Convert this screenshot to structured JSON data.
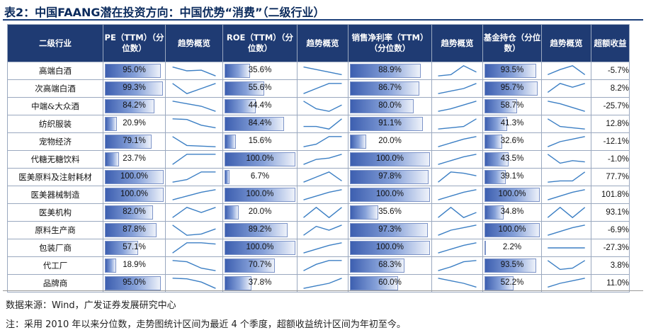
{
  "title": "表2：中国FAANG潜在投资方向：中国优势“消费”（二级行业）",
  "headers": {
    "industry": "二级行业",
    "pe": "PE（TTM）（分位数）",
    "trend1": "趋势概览",
    "roe": "ROE（TTM）（分位数）",
    "trend2": "趋势概览",
    "margin": "销售净利率（TTM）（分位数）",
    "trend3": "趋势概览",
    "fund": "基金持仓（分位数）",
    "trend4": "趋势概览",
    "excess": "超额收益"
  },
  "rows": [
    {
      "industry": "高端白酒",
      "pe": "95.0%",
      "pe_v": 0.95,
      "roe": "35.6%",
      "roe_v": 0.356,
      "margin": "88.9%",
      "margin_v": 0.889,
      "fund": "93.5%",
      "fund_v": 0.935,
      "excess": "-5.7%",
      "t1": [
        0.8,
        0.5,
        0.55,
        0.1
      ],
      "t2": [
        0.8,
        0.6,
        0.4,
        0.2
      ],
      "t3": [
        0.1,
        0.2,
        0.9,
        0.4
      ],
      "t4": [
        0.2,
        0.6,
        0.9,
        0.2
      ]
    },
    {
      "industry": "次高端白酒",
      "pe": "99.3%",
      "pe_v": 0.993,
      "roe": "55.6%",
      "roe_v": 0.556,
      "margin": "86.7%",
      "margin_v": 0.867,
      "fund": "95.7%",
      "fund_v": 0.957,
      "excess": "8.2%",
      "t1": [
        0.9,
        0.1,
        0.5,
        0.9
      ],
      "t2": [
        0.1,
        0.5,
        0.9,
        0.9
      ],
      "t3": [
        0.1,
        0.3,
        0.5,
        0.9
      ],
      "t4": [
        0.2,
        0.9,
        0.6,
        0.9
      ]
    },
    {
      "industry": "中端&大众酒",
      "pe": "84.2%",
      "pe_v": 0.842,
      "roe": "44.4%",
      "roe_v": 0.444,
      "margin": "80.0%",
      "margin_v": 0.8,
      "fund": "58.7%",
      "fund_v": 0.587,
      "excess": "-25.7%",
      "t1": [
        0.9,
        0.7,
        0.5,
        0.1
      ],
      "t2": [
        0.9,
        0.3,
        0.1,
        0.6
      ],
      "t3": [
        0.1,
        0.3,
        0.6,
        0.9
      ],
      "t4": [
        0.9,
        0.7,
        0.4,
        0.1
      ]
    },
    {
      "industry": "纺织服装",
      "pe": "20.9%",
      "pe_v": 0.209,
      "roe": "84.4%",
      "roe_v": 0.844,
      "margin": "91.1%",
      "margin_v": 0.911,
      "fund": "41.3%",
      "fund_v": 0.413,
      "excess": "12.8%",
      "t1": [
        0.9,
        0.85,
        0.4,
        0.2
      ],
      "t2": [
        0.3,
        0.3,
        0.1,
        0.9
      ],
      "t3": [
        0.1,
        0.2,
        0.3,
        0.9
      ],
      "t4": [
        0.9,
        0.3,
        0.2,
        0.1
      ]
    },
    {
      "industry": "宠物经济",
      "pe": "79.1%",
      "pe_v": 0.791,
      "roe": "15.6%",
      "roe_v": 0.156,
      "margin": "20.0%",
      "margin_v": 0.2,
      "fund": "32.6%",
      "fund_v": 0.326,
      "excess": "-12.1%",
      "t1": [
        0.9,
        0.2,
        0.15,
        0.1
      ],
      "t2": [
        0.1,
        0.3,
        0.9,
        0.9
      ],
      "t3": [
        0.1,
        0.4,
        0.7,
        0.9
      ],
      "t4": [
        0.1,
        0.5,
        0.7,
        0.9
      ]
    },
    {
      "industry": "代糖无糖饮料",
      "pe": "23.7%",
      "pe_v": 0.237,
      "roe": "100.0%",
      "roe_v": 1.0,
      "margin": "100.0%",
      "margin_v": 1.0,
      "fund": "43.5%",
      "fund_v": 0.435,
      "excess": "-1.0%",
      "t1": [
        0.1,
        0.9,
        0.9,
        0.9
      ],
      "t2": [
        0.1,
        0.5,
        0.6,
        0.9
      ],
      "t3": [
        0.1,
        0.4,
        0.7,
        0.9
      ],
      "t4": [
        0.9,
        0.2,
        0.4,
        0.3
      ]
    },
    {
      "industry": "医美原料及注射耗材",
      "pe": "100.0%",
      "pe_v": 1.0,
      "roe": "6.7%",
      "roe_v": 0.067,
      "margin": "97.8%",
      "margin_v": 0.978,
      "fund": "39.1%",
      "fund_v": 0.391,
      "excess": "77.7%",
      "t1": [
        0.1,
        0.3,
        0.9,
        0.9
      ],
      "t2": [
        0.1,
        0.5,
        0.9,
        0.2
      ],
      "t3": [
        0.1,
        0.9,
        0.8,
        0.6
      ],
      "t4": [
        0.1,
        0.2,
        0.2,
        0.9
      ]
    },
    {
      "industry": "医美器械制造",
      "pe": "100.0%",
      "pe_v": 1.0,
      "roe": "100.0%",
      "roe_v": 1.0,
      "margin": "100.0%",
      "margin_v": 1.0,
      "fund": "100.0%",
      "fund_v": 1.0,
      "excess": "101.8%",
      "t1": [
        0.1,
        0.4,
        0.7,
        0.9
      ],
      "t2": [
        0.1,
        0.4,
        0.7,
        0.9
      ],
      "t3": [
        0.1,
        0.4,
        0.7,
        0.9
      ],
      "t4": [
        0.1,
        0.4,
        0.7,
        0.9
      ]
    },
    {
      "industry": "医美机构",
      "pe": "82.0%",
      "pe_v": 0.82,
      "roe": "20.0%",
      "roe_v": 0.2,
      "margin": "35.6%",
      "margin_v": 0.356,
      "fund": "34.8%",
      "fund_v": 0.348,
      "excess": "93.1%",
      "t1": [
        0.1,
        0.9,
        0.5,
        0.9
      ],
      "t2": [
        0.1,
        0.9,
        0.1,
        0.9
      ],
      "t3": [
        0.1,
        0.9,
        0.1,
        0.5
      ],
      "t4": [
        0.1,
        0.9,
        0.1,
        0.9
      ]
    },
    {
      "industry": "原料生产商",
      "pe": "87.8%",
      "pe_v": 0.878,
      "roe": "89.2%",
      "roe_v": 0.892,
      "margin": "97.3%",
      "margin_v": 0.973,
      "fund": "100.0%",
      "fund_v": 1.0,
      "excess": "-6.9%",
      "t1": [
        0.9,
        0.1,
        0.2,
        0.6
      ],
      "t2": [
        0.1,
        0.8,
        0.5,
        0.9
      ],
      "t3": [
        0.1,
        0.5,
        0.7,
        0.9
      ],
      "t4": [
        0.1,
        0.4,
        0.7,
        0.9
      ]
    },
    {
      "industry": "包装厂商",
      "pe": "57.1%",
      "pe_v": 0.571,
      "roe": "100.0%",
      "roe_v": 1.0,
      "margin": "100.0%",
      "margin_v": 1.0,
      "fund": "2.2%",
      "fund_v": 0.022,
      "excess": "-27.3%",
      "t1": [
        0.1,
        0.9,
        0.9,
        0.8
      ],
      "t2": [
        0.1,
        0.4,
        0.7,
        0.9
      ],
      "t3": [
        0.1,
        0.4,
        0.7,
        0.9
      ],
      "t4": [
        0.5,
        0.5,
        0.5,
        0.5
      ]
    },
    {
      "industry": "代工厂",
      "pe": "18.9%",
      "pe_v": 0.189,
      "roe": "70.7%",
      "roe_v": 0.707,
      "margin": "68.3%",
      "margin_v": 0.683,
      "fund": "93.5%",
      "fund_v": 0.935,
      "excess": "3.8%",
      "t1": [
        0.9,
        0.8,
        0.3,
        0.1
      ],
      "t2": [
        0.1,
        0.6,
        0.9,
        0.9
      ],
      "t3": [
        0.1,
        0.4,
        0.8,
        0.9
      ],
      "t4": [
        0.9,
        0.2,
        0.3,
        0.9
      ]
    },
    {
      "industry": "品牌商",
      "pe": "95.0%",
      "pe_v": 0.95,
      "roe": "37.8%",
      "roe_v": 0.378,
      "margin": "60.0%",
      "margin_v": 0.6,
      "fund": "52.2%",
      "fund_v": 0.522,
      "excess": "11.0%",
      "t1": [
        0.9,
        0.85,
        0.6,
        0.1
      ],
      "t2": [
        0.1,
        0.3,
        0.5,
        0.9
      ],
      "t3": [
        0.9,
        0.7,
        0.5,
        0.2
      ],
      "t4": [
        0.2,
        0.5,
        0.7,
        0.9
      ]
    }
  ],
  "footer": {
    "source": "数据来源：Wind，广发证券发展研究中心",
    "note": "注：采用 2010 年以来分位数，走势图统计区间为最近 4 个季度，超额收益统计区间为年初至今。"
  }
}
